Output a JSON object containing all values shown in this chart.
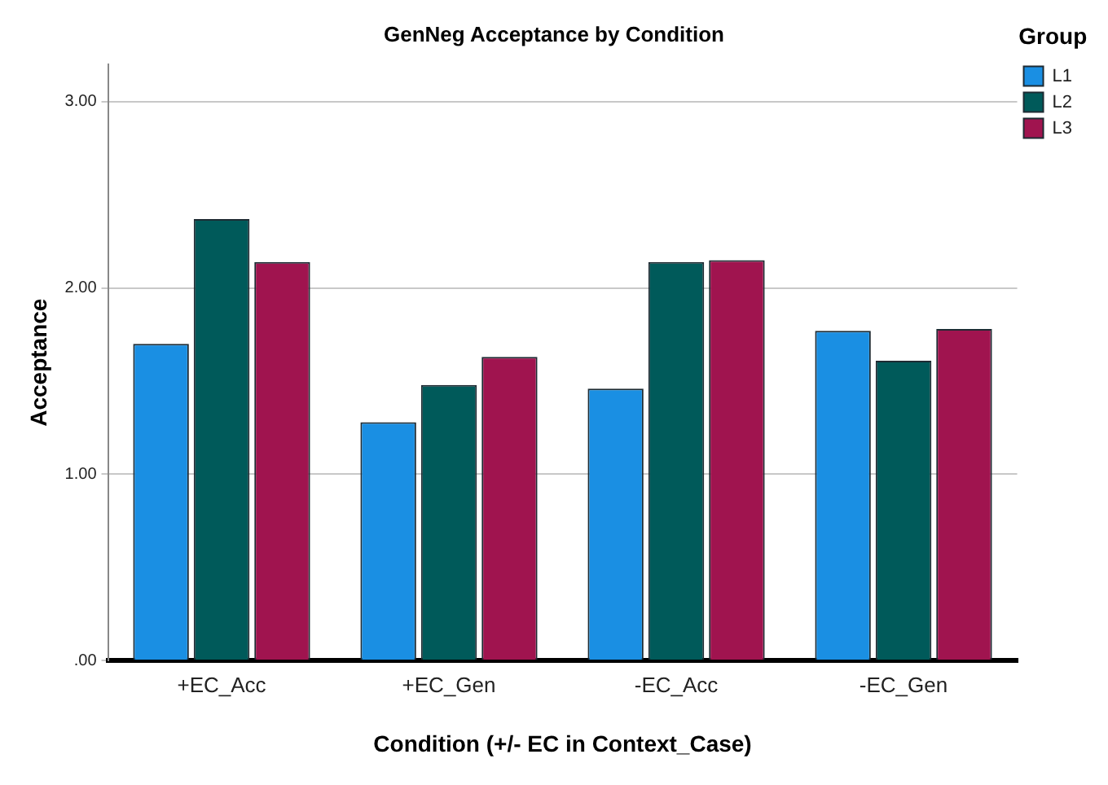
{
  "chart_data": {
    "type": "bar",
    "title": "GenNeg Acceptance by Condition",
    "xlabel": "Condition (+/- EC in Context_Case)",
    "ylabel": "Acceptance",
    "legend_title": "Group",
    "categories": [
      "+EC_Acc",
      "+EC_Gen",
      "-EC_Acc",
      "-EC_Gen"
    ],
    "series": [
      {
        "name": "L1",
        "color": "#1a8fe3",
        "values": [
          1.7,
          1.28,
          1.46,
          1.77
        ]
      },
      {
        "name": "L2",
        "color": "#005a5a",
        "values": [
          2.37,
          1.48,
          2.14,
          1.61
        ]
      },
      {
        "name": "L3",
        "color": "#a0144f",
        "values": [
          2.14,
          1.63,
          2.15,
          1.78
        ]
      }
    ],
    "ylim": [
      0,
      3.2
    ],
    "yticks": [
      {
        "value": 0,
        "label": ".00"
      },
      {
        "value": 1,
        "label": "1.00"
      },
      {
        "value": 2,
        "label": "2.00"
      },
      {
        "value": 3,
        "label": "3.00"
      }
    ],
    "grid": "y",
    "legend": "top right"
  }
}
